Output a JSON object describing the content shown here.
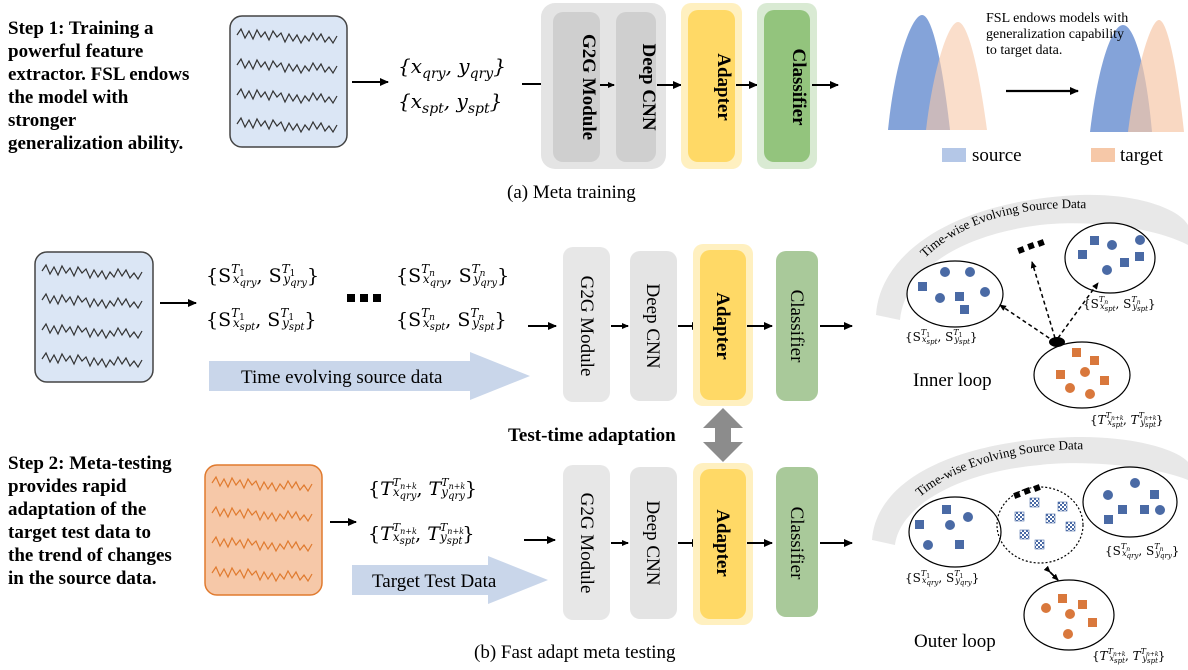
{
  "step1_text": "Step 1: Training a powerful feature extractor. FSL endows the model with stronger generalization ability.",
  "step2_text": "Step 2: Meta-testing provides rapid adaptation of the target test data to the trend of changes in the source data.",
  "caption_a": "(a) Meta training",
  "caption_b": "(b) Fast adapt meta testing",
  "modules": {
    "g2g": "G2G Module",
    "cnn": "Deep CNN",
    "adapter": "Adapter",
    "classifier": "Classifier"
  },
  "fsl_note": "FSL endows models with generalization capability to target data.",
  "legend": {
    "source": "source",
    "target": "target"
  },
  "time_evolving_label": "Time evolving source data",
  "target_test_label": "Target Test Data",
  "test_time_adaptation": "Test-time adaptation",
  "arc_label": "Time-wise Evolving  Source Data",
  "inner_loop": "Inner loop",
  "outer_loop": "Outer loop",
  "colors": {
    "signal_blue_fill": "#dbe6f5",
    "signal_orange_fill": "#f6c8a8",
    "signal_orange_line": "#e07a2e",
    "adapter_fill": "#ffd966",
    "adapter_glow": "#fff0c0",
    "classifier_fill": "#93c47d",
    "classifier_glow": "#d9ead3",
    "gray_module": "#d0d0d0",
    "gray_panel": "#e4e4e4",
    "dot_blue": "#4a6aa5",
    "dot_orange": "#d9783c",
    "arrow_gray": "#8c8c8c"
  }
}
